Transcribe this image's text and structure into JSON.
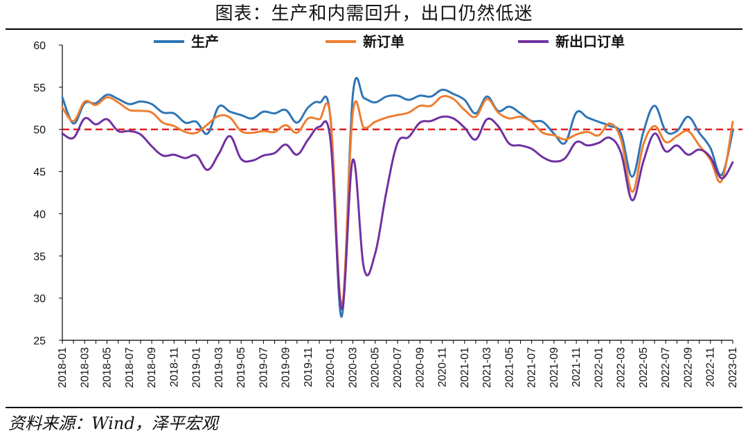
{
  "page": {
    "title": "图表：生产和内需回升，出口仍然低迷",
    "source": "资料来源：Wind，泽平宏观"
  },
  "colors": {
    "production": "#2E75B6",
    "new_orders": "#ED7D31",
    "export_orders": "#7030A0",
    "reference": "#E02020",
    "axis": "#000000"
  },
  "chart_data": {
    "type": "line",
    "title": "图表：生产和内需回升，出口仍然低迷",
    "xlabel": "",
    "ylabel": "",
    "ylim": [
      25,
      60
    ],
    "yticks": [
      25,
      30,
      35,
      40,
      45,
      50,
      55,
      60
    ],
    "reference_line": 50,
    "legend_position": "top",
    "grid": false,
    "categories": [
      "2018-01",
      "2018-02",
      "2018-03",
      "2018-04",
      "2018-05",
      "2018-06",
      "2018-07",
      "2018-08",
      "2018-09",
      "2018-10",
      "2018-11",
      "2018-12",
      "2019-01",
      "2019-02",
      "2019-03",
      "2019-04",
      "2019-05",
      "2019-06",
      "2019-07",
      "2019-08",
      "2019-09",
      "2019-10",
      "2019-11",
      "2019-12",
      "2020-01",
      "2020-02",
      "2020-03",
      "2020-04",
      "2020-05",
      "2020-06",
      "2020-07",
      "2020-08",
      "2020-09",
      "2020-10",
      "2020-11",
      "2020-12",
      "2021-01",
      "2021-02",
      "2021-03",
      "2021-04",
      "2021-05",
      "2021-06",
      "2021-07",
      "2021-08",
      "2021-09",
      "2021-10",
      "2021-11",
      "2021-12",
      "2022-01",
      "2022-02",
      "2022-03",
      "2022-04",
      "2022-05",
      "2022-06",
      "2022-07",
      "2022-08",
      "2022-09",
      "2022-10",
      "2022-11",
      "2022-12",
      "2023-01"
    ],
    "tick_labels": [
      "2018-01",
      "2018-03",
      "2018-05",
      "2018-07",
      "2018-09",
      "2018-11",
      "2019-01",
      "2019-03",
      "2019-05",
      "2019-07",
      "2019-09",
      "2019-11",
      "2020-01",
      "2020-03",
      "2020-05",
      "2020-07",
      "2020-09",
      "2020-11",
      "2021-01",
      "2021-03",
      "2021-05",
      "2021-07",
      "2021-09",
      "2021-11",
      "2022-01",
      "2022-03",
      "2022-05",
      "2022-07",
      "2022-09",
      "2022-11",
      "2023-01"
    ],
    "series": [
      {
        "name": "生产",
        "key": "production",
        "values": [
          53.8,
          50.7,
          53.1,
          53.1,
          54.1,
          53.6,
          53.0,
          53.3,
          53.0,
          52.0,
          51.9,
          50.8,
          50.9,
          49.5,
          52.7,
          52.1,
          51.7,
          51.3,
          52.1,
          51.9,
          52.3,
          50.8,
          52.6,
          53.2,
          51.3,
          27.8,
          54.1,
          53.7,
          53.2,
          53.9,
          54.0,
          53.5,
          54.0,
          53.9,
          54.7,
          54.2,
          53.5,
          51.9,
          53.9,
          52.2,
          52.7,
          51.9,
          51.0,
          50.9,
          49.5,
          48.4,
          52.0,
          51.4,
          50.9,
          50.4,
          49.5,
          44.4,
          49.7,
          52.8,
          49.8,
          49.8,
          51.5,
          49.6,
          47.8,
          44.6,
          49.8
        ]
      },
      {
        "name": "新订单",
        "key": "new_orders",
        "values": [
          52.6,
          51.0,
          53.3,
          52.9,
          53.8,
          53.2,
          52.3,
          52.2,
          52.0,
          50.8,
          50.4,
          49.7,
          49.6,
          50.6,
          51.6,
          51.4,
          49.8,
          49.6,
          49.8,
          49.7,
          50.5,
          49.6,
          51.3,
          51.2,
          51.4,
          29.3,
          52.0,
          50.2,
          50.9,
          51.4,
          51.7,
          52.0,
          52.8,
          52.8,
          53.9,
          53.6,
          52.3,
          51.5,
          53.6,
          52.0,
          51.3,
          51.5,
          50.9,
          49.6,
          49.3,
          48.8,
          49.4,
          49.7,
          49.3,
          50.7,
          48.8,
          42.6,
          48.2,
          50.4,
          48.5,
          49.2,
          49.8,
          48.1,
          46.4,
          43.9,
          50.9
        ]
      },
      {
        "name": "新出口订单",
        "key": "export_orders",
        "values": [
          49.5,
          49.0,
          51.3,
          50.6,
          51.2,
          49.8,
          49.8,
          49.4,
          48.0,
          46.9,
          47.0,
          46.6,
          46.9,
          45.2,
          47.1,
          49.2,
          46.5,
          46.3,
          46.9,
          47.2,
          48.2,
          47.0,
          48.8,
          50.3,
          48.7,
          28.7,
          46.4,
          33.5,
          35.3,
          42.6,
          48.4,
          49.1,
          50.8,
          51.0,
          51.5,
          51.3,
          50.2,
          48.8,
          51.2,
          50.4,
          48.3,
          48.1,
          47.7,
          46.7,
          46.2,
          46.6,
          48.5,
          48.1,
          48.4,
          49.0,
          47.2,
          41.6,
          46.2,
          49.5,
          47.4,
          48.1,
          47.0,
          47.6,
          46.7,
          44.2,
          46.1
        ]
      }
    ]
  },
  "legend": {
    "production": "生产",
    "new_orders": "新订单",
    "export_orders": "新出口订单"
  }
}
